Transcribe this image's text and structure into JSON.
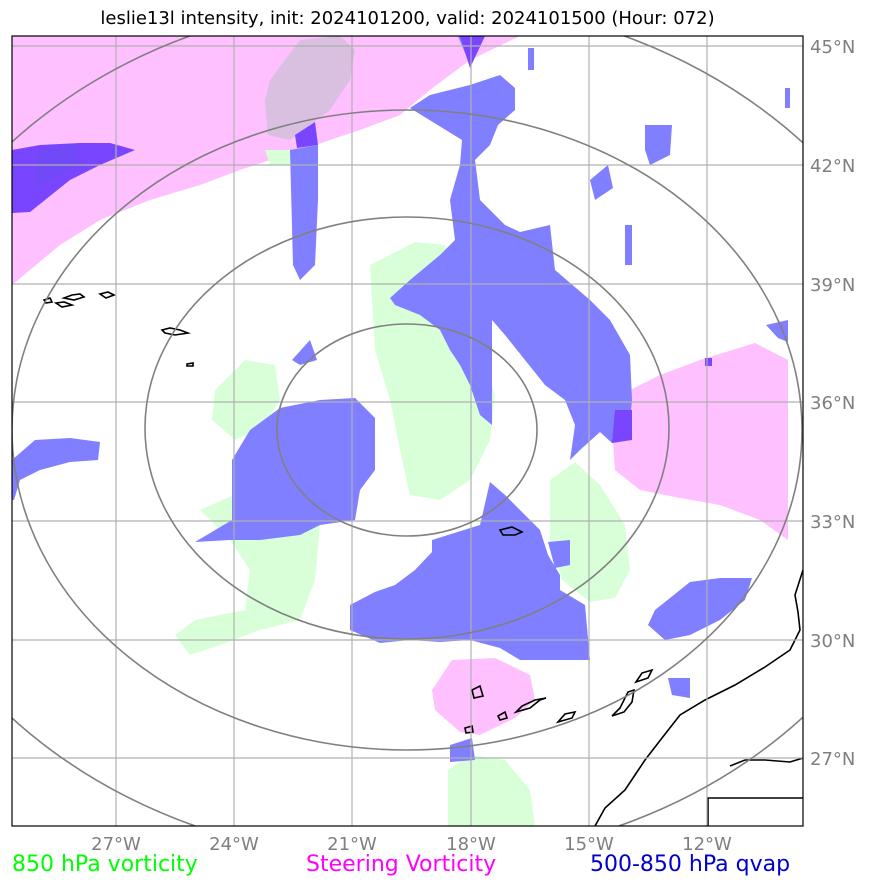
{
  "title": "leslie13l intensity, init: 2024101200, valid: 2024101500 (Hour: 072)",
  "lon_labels": [
    "27°W",
    "24°W",
    "21°W",
    "18°W",
    "15°W",
    "12°W"
  ],
  "lat_labels": [
    "45°N",
    "42°N",
    "39°N",
    "36°N",
    "33°N",
    "30°N",
    "27°N"
  ],
  "legend": [
    {
      "label": "850 hPa vorticity",
      "color": "#00ff00"
    },
    {
      "label": "Steering Vorticity",
      "color": "#ff00ff"
    },
    {
      "label": "500-850 hPa qvap",
      "color": "#0000cd"
    }
  ],
  "colors": {
    "vorticity_850": "#d9ffd9",
    "steering_vorticity": "#ffc0ff",
    "qvap": "#7f7fff",
    "qvap_dark": "#7a45ff",
    "rings": "#808080",
    "grid": "#b0b0b0"
  }
}
